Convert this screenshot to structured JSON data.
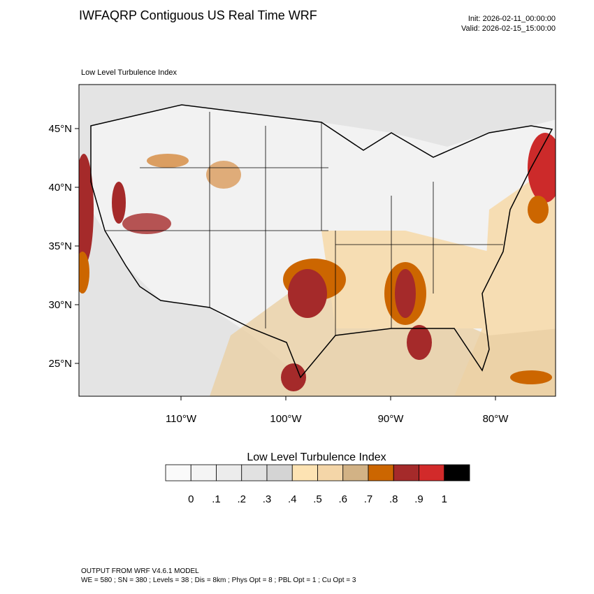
{
  "header": {
    "title": "IWFAQRP Contiguous US Real Time WRF",
    "init": "Init: 2026-02-11_00:00:00",
    "valid": "Valid: 2026-02-15_15:00:00"
  },
  "map": {
    "subtitle": "Low Level Turbulence Index",
    "lat_labels": [
      "45°N",
      "40°N",
      "35°N",
      "30°N",
      "25°N"
    ],
    "lon_labels": [
      "110°W",
      "100°W",
      "90°W",
      "80°W"
    ]
  },
  "colorbar": {
    "title": "Low Level Turbulence Index",
    "colors": [
      "#fafafa",
      "#f4f4f4",
      "#ececec",
      "#e1e1e1",
      "#d4d4d4",
      "#fde3b3",
      "#f4d6a8",
      "#d2b285",
      "#cc6600",
      "#a52a2a",
      "#d22a2a",
      "#000000"
    ],
    "labels": [
      "0",
      ".1",
      ".2",
      ".3",
      ".4",
      ".5",
      ".6",
      ".7",
      ".8",
      ".9",
      "1"
    ]
  },
  "footer": {
    "line1": "OUTPUT FROM WRF V4.6.1 MODEL",
    "line2": "WE = 580 ; SN = 380 ; Levels = 38 ; Dis = 8km ; Phys Opt = 8 ; PBL Opt = 1 ; Cu Opt = 3"
  }
}
